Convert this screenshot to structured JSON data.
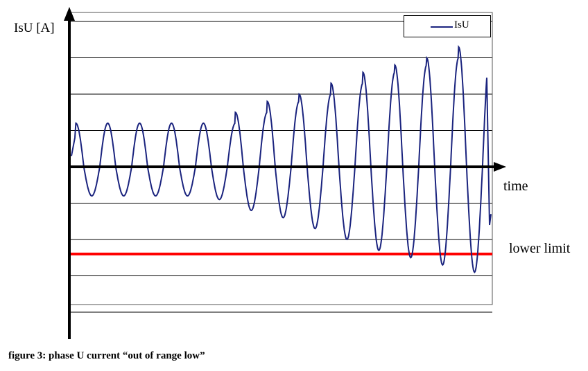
{
  "chart_data": {
    "type": "line",
    "title": "",
    "ylabel": "IsU [A]",
    "xlabel": "time",
    "grid": true,
    "ylim": [
      -4,
      4.5
    ],
    "xlim": [
      0,
      13
    ],
    "gridlines_y": [
      4,
      3,
      2,
      1,
      -1,
      -2,
      -3,
      -4
    ],
    "legend_position": "top-right",
    "series": [
      {
        "name": "IsU",
        "color": "#1a237e",
        "cycles": [
          {
            "max": 1.2,
            "min": -0.8
          },
          {
            "max": 1.2,
            "min": -0.8
          },
          {
            "max": 1.2,
            "min": -0.8
          },
          {
            "max": 1.2,
            "min": -0.8
          },
          {
            "max": 1.2,
            "min": -0.9
          },
          {
            "max": 1.5,
            "min": -1.2
          },
          {
            "max": 1.8,
            "min": -1.4
          },
          {
            "max": 2.0,
            "min": -1.7
          },
          {
            "max": 2.3,
            "min": -2.0
          },
          {
            "max": 2.6,
            "min": -2.3
          },
          {
            "max": 2.8,
            "min": -2.5
          },
          {
            "max": 3.0,
            "min": -2.7
          },
          {
            "max": 3.3,
            "min": -2.9
          }
        ],
        "end_value": -1.6
      }
    ],
    "lower_limit": {
      "value": -2.4,
      "color": "#ff0000",
      "label": "lower limit"
    }
  },
  "caption": "figure 3: phase U current “out of range low”"
}
